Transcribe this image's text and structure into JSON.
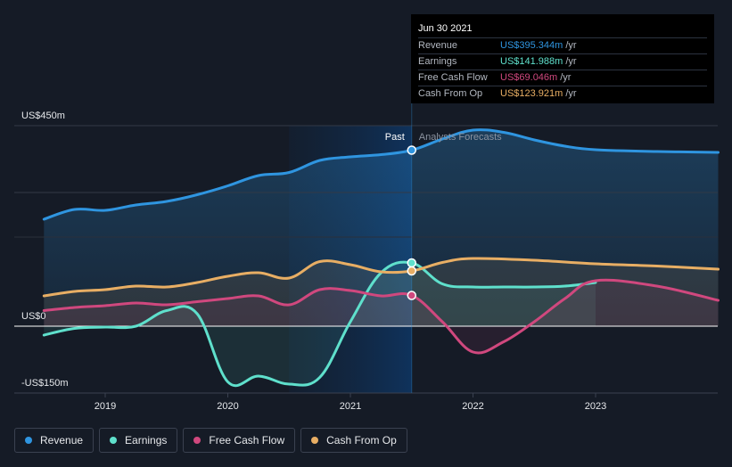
{
  "chart_data": {
    "type": "line",
    "y_unit": "US$m",
    "ylim": [
      -150,
      450
    ],
    "xlim": [
      2018.5,
      2024.0
    ],
    "y_ticks": [
      {
        "value": 450,
        "label": "US$450m"
      },
      {
        "value": 0,
        "label": "US$0"
      },
      {
        "value": -150,
        "label": "-US$150m"
      }
    ],
    "x_ticks": [
      {
        "value": 2019,
        "label": "2019"
      },
      {
        "value": 2020,
        "label": "2020"
      },
      {
        "value": 2021,
        "label": "2021"
      },
      {
        "value": 2022,
        "label": "2022"
      },
      {
        "value": 2023,
        "label": "2023"
      }
    ],
    "past_start": 2020.5,
    "divider_x": 2021.5,
    "past_label": "Past",
    "forecast_label": "Analysts Forecasts",
    "series": [
      {
        "name": "Revenue",
        "color": "#2f95e0",
        "fill": true,
        "x": [
          2018.5,
          2018.75,
          2019.0,
          2019.25,
          2019.5,
          2019.75,
          2020.0,
          2020.25,
          2020.5,
          2020.75,
          2021.0,
          2021.25,
          2021.5,
          2021.75,
          2022.0,
          2022.25,
          2022.5,
          2022.75,
          2023.0,
          2023.5,
          2024.0
        ],
        "values": [
          240,
          262,
          260,
          272,
          280,
          295,
          315,
          338,
          345,
          372,
          380,
          385,
          395,
          420,
          440,
          435,
          418,
          404,
          396,
          392,
          390
        ]
      },
      {
        "name": "Earnings",
        "color": "#5fe0cc",
        "fill": false,
        "x": [
          2018.5,
          2018.75,
          2019.0,
          2019.25,
          2019.5,
          2019.75,
          2020.0,
          2020.25,
          2020.5,
          2020.75,
          2021.0,
          2021.25,
          2021.5,
          2021.75,
          2022.0,
          2022.25,
          2022.5,
          2022.75,
          2023.0
        ],
        "values": [
          -20,
          -5,
          -2,
          0,
          35,
          28,
          -125,
          -112,
          -130,
          -115,
          10,
          120,
          142,
          95,
          88,
          88,
          88,
          90,
          98
        ]
      },
      {
        "name": "Free Cash Flow",
        "color": "#d0487e",
        "fill": false,
        "x": [
          2018.5,
          2018.75,
          2019.0,
          2019.25,
          2019.5,
          2019.75,
          2020.0,
          2020.25,
          2020.5,
          2020.75,
          2021.0,
          2021.25,
          2021.5,
          2021.75,
          2022.0,
          2022.25,
          2022.5,
          2022.75,
          2023.0,
          2023.5,
          2024.0
        ],
        "values": [
          35,
          42,
          46,
          52,
          48,
          55,
          62,
          68,
          48,
          82,
          80,
          68,
          69,
          10,
          -58,
          -35,
          10,
          62,
          102,
          90,
          58
        ]
      },
      {
        "name": "Cash From Op",
        "color": "#e8ae64",
        "fill": false,
        "x": [
          2018.5,
          2018.75,
          2019.0,
          2019.25,
          2019.5,
          2019.75,
          2020.0,
          2020.25,
          2020.5,
          2020.75,
          2021.0,
          2021.25,
          2021.5,
          2021.75,
          2022.0,
          2022.5,
          2023.0,
          2023.5,
          2024.0
        ],
        "values": [
          68,
          78,
          82,
          90,
          88,
          98,
          112,
          120,
          108,
          145,
          138,
          122,
          124,
          143,
          152,
          148,
          140,
          135,
          128
        ]
      }
    ],
    "tooltip": {
      "date": "Jun 30 2021",
      "rows": [
        {
          "name": "Revenue",
          "value": "US$395.344m",
          "unit": "/yr",
          "color": "#2f95e0"
        },
        {
          "name": "Earnings",
          "value": "US$141.988m",
          "unit": "/yr",
          "color": "#5fe0cc"
        },
        {
          "name": "Free Cash Flow",
          "value": "US$69.046m",
          "unit": "/yr",
          "color": "#d0487e"
        },
        {
          "name": "Cash From Op",
          "value": "US$123.921m",
          "unit": "/yr",
          "color": "#e8ae64"
        }
      ]
    },
    "legend": [
      {
        "name": "Revenue",
        "color": "#2f95e0"
      },
      {
        "name": "Earnings",
        "color": "#5fe0cc"
      },
      {
        "name": "Free Cash Flow",
        "color": "#d0487e"
      },
      {
        "name": "Cash From Op",
        "color": "#e8ae64"
      }
    ]
  }
}
